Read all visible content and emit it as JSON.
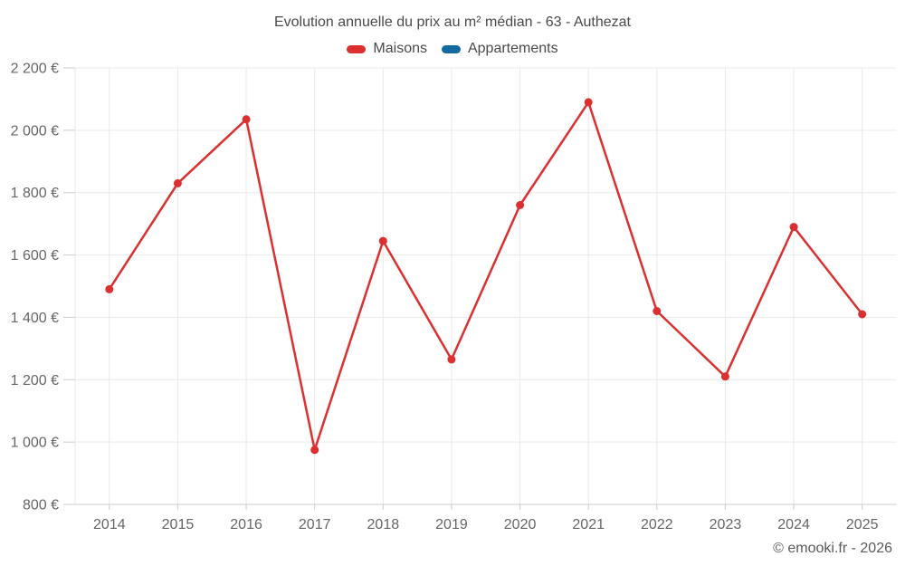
{
  "chart_data": {
    "type": "line",
    "title": "Evolution annuelle du prix au m² médian - 63 - Authezat",
    "categories": [
      "2014",
      "2015",
      "2016",
      "2017",
      "2018",
      "2019",
      "2020",
      "2021",
      "2022",
      "2023",
      "2024",
      "2025"
    ],
    "series": [
      {
        "name": "Maisons",
        "color": "#dc3030",
        "values": [
          1490,
          1830,
          2035,
          975,
          1645,
          1265,
          1760,
          2090,
          1420,
          1210,
          1690,
          1410
        ]
      },
      {
        "name": "Appartements",
        "color": "#136a9e",
        "values": []
      }
    ],
    "ylim": [
      800,
      2200
    ],
    "y_ticks": [
      {
        "value": 800,
        "label": "800 €"
      },
      {
        "value": 1000,
        "label": "1 000 €"
      },
      {
        "value": 1200,
        "label": "1 200 €"
      },
      {
        "value": 1400,
        "label": "1 400 €"
      },
      {
        "value": 1600,
        "label": "1 600 €"
      },
      {
        "value": 1800,
        "label": "1 800 €"
      },
      {
        "value": 2000,
        "label": "2 000 €"
      },
      {
        "value": 2200,
        "label": "2 200 €"
      }
    ],
    "grid": true,
    "legend_position": "top",
    "colors": {
      "grid": "#e9e9e9",
      "tick": "#cccccc",
      "axis_label": "#666666",
      "title_text": "#4a4a4a"
    },
    "copyright": "© emooki.fr - 2026"
  }
}
